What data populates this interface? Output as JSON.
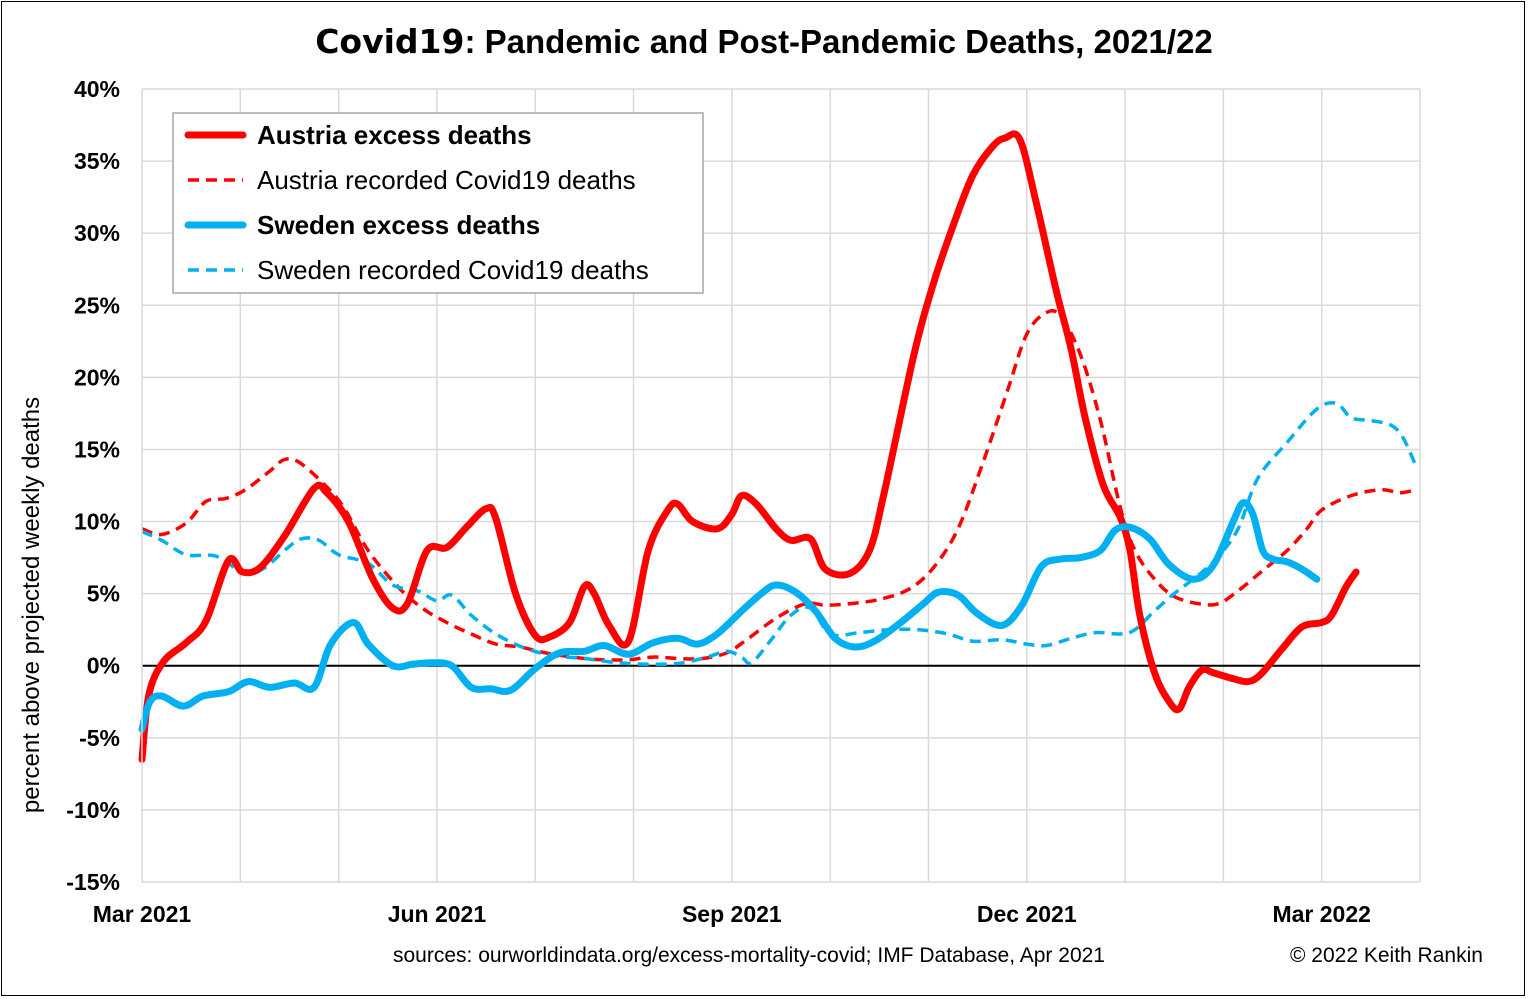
{
  "title": {
    "part1": "Covid19",
    "part2": ": Pandemic and Post-Pandemic Deaths, 2021/22"
  },
  "footer": {
    "sources": "sources: ourworldindata.org/excess-mortality-covid; IMF Database, Apr 2021",
    "copyright": "© 2022 Keith Rankin"
  },
  "chart_data": {
    "type": "line",
    "title": "Covid19: Pandemic and Post-Pandemic Deaths, 2021/22",
    "xlabel": "",
    "ylabel": "percent above projected weekly deaths",
    "ylim": [
      -15,
      40
    ],
    "ytick_step": 5,
    "yticks": [
      "-15%",
      "-10%",
      "-5%",
      "0%",
      "5%",
      "10%",
      "15%",
      "20%",
      "25%",
      "30%",
      "35%",
      "40%"
    ],
    "xlim": [
      0,
      13
    ],
    "x_unit": "months since Mar 2021",
    "xtick_labels": [
      {
        "x": 0,
        "label": "Mar 2021"
      },
      {
        "x": 3,
        "label": "Jun 2021"
      },
      {
        "x": 6,
        "label": "Sep 2021"
      },
      {
        "x": 9,
        "label": "Dec 2021"
      },
      {
        "x": 12,
        "label": "Mar 2022"
      }
    ],
    "grid": true,
    "legend_position": "top-left",
    "series": [
      {
        "name": "Austria excess deaths",
        "color": "#ff0000",
        "style": "solid",
        "bold_label": true,
        "points": [
          [
            0.0,
            -6.5
          ],
          [
            0.07,
            -2.0
          ],
          [
            0.22,
            0.3
          ],
          [
            0.45,
            1.6
          ],
          [
            0.65,
            3.1
          ],
          [
            0.88,
            7.3
          ],
          [
            1.02,
            6.5
          ],
          [
            1.2,
            6.8
          ],
          [
            1.45,
            9.0
          ],
          [
            1.75,
            12.3
          ],
          [
            1.88,
            12.0
          ],
          [
            2.1,
            10.0
          ],
          [
            2.35,
            6.0
          ],
          [
            2.55,
            4.0
          ],
          [
            2.7,
            4.3
          ],
          [
            2.9,
            8.0
          ],
          [
            3.1,
            8.2
          ],
          [
            3.3,
            9.6
          ],
          [
            3.5,
            10.9
          ],
          [
            3.6,
            10.2
          ],
          [
            3.8,
            5.0
          ],
          [
            4.0,
            2.1
          ],
          [
            4.15,
            2.0
          ],
          [
            4.35,
            3.0
          ],
          [
            4.5,
            5.5
          ],
          [
            4.6,
            5.0
          ],
          [
            4.75,
            2.8
          ],
          [
            4.95,
            1.7
          ],
          [
            5.15,
            8.0
          ],
          [
            5.35,
            10.8
          ],
          [
            5.45,
            11.2
          ],
          [
            5.6,
            10.0
          ],
          [
            5.85,
            9.5
          ],
          [
            6.0,
            10.5
          ],
          [
            6.1,
            11.8
          ],
          [
            6.25,
            11.2
          ],
          [
            6.45,
            9.5
          ],
          [
            6.6,
            8.7
          ],
          [
            6.8,
            8.8
          ],
          [
            6.95,
            6.7
          ],
          [
            7.2,
            6.4
          ],
          [
            7.4,
            8.0
          ],
          [
            7.55,
            12.0
          ],
          [
            7.85,
            21.5
          ],
          [
            8.05,
            26.5
          ],
          [
            8.25,
            30.5
          ],
          [
            8.45,
            34.0
          ],
          [
            8.65,
            36.0
          ],
          [
            8.78,
            36.6
          ],
          [
            8.93,
            36.5
          ],
          [
            9.1,
            32.0
          ],
          [
            9.3,
            26.0
          ],
          [
            9.45,
            22.0
          ],
          [
            9.6,
            17.0
          ],
          [
            9.78,
            12.5
          ],
          [
            9.95,
            10.3
          ],
          [
            10.05,
            8.0
          ],
          [
            10.15,
            3.5
          ],
          [
            10.3,
            -0.5
          ],
          [
            10.45,
            -2.5
          ],
          [
            10.55,
            -3.0
          ],
          [
            10.65,
            -1.5
          ],
          [
            10.78,
            -0.3
          ],
          [
            10.9,
            -0.5
          ],
          [
            11.1,
            -0.9
          ],
          [
            11.25,
            -1.1
          ],
          [
            11.38,
            -0.6
          ],
          [
            11.6,
            1.2
          ],
          [
            11.8,
            2.7
          ],
          [
            12.0,
            3.0
          ],
          [
            12.1,
            3.5
          ],
          [
            12.25,
            5.5
          ],
          [
            12.35,
            6.5
          ]
        ]
      },
      {
        "name": "Austria recorded Covid19 deaths",
        "color": "#ff0000",
        "style": "dashed",
        "bold_label": false,
        "points": [
          [
            0.0,
            9.5
          ],
          [
            0.2,
            9.1
          ],
          [
            0.45,
            9.9
          ],
          [
            0.65,
            11.4
          ],
          [
            0.85,
            11.6
          ],
          [
            1.05,
            12.2
          ],
          [
            1.3,
            13.5
          ],
          [
            1.45,
            14.3
          ],
          [
            1.6,
            14.1
          ],
          [
            1.85,
            12.6
          ],
          [
            2.05,
            11.0
          ],
          [
            2.3,
            8.0
          ],
          [
            2.6,
            5.5
          ],
          [
            2.85,
            4.0
          ],
          [
            3.1,
            3.0
          ],
          [
            3.35,
            2.2
          ],
          [
            3.6,
            1.5
          ],
          [
            3.85,
            1.3
          ],
          [
            4.1,
            0.9
          ],
          [
            4.5,
            0.5
          ],
          [
            4.9,
            0.4
          ],
          [
            5.2,
            0.6
          ],
          [
            5.45,
            0.5
          ],
          [
            5.7,
            0.5
          ],
          [
            5.95,
            0.9
          ],
          [
            6.15,
            1.8
          ],
          [
            6.45,
            3.3
          ],
          [
            6.75,
            4.3
          ],
          [
            6.95,
            4.2
          ],
          [
            7.2,
            4.3
          ],
          [
            7.5,
            4.6
          ],
          [
            7.8,
            5.3
          ],
          [
            8.05,
            6.8
          ],
          [
            8.3,
            9.5
          ],
          [
            8.55,
            14.0
          ],
          [
            8.8,
            19.0
          ],
          [
            9.0,
            23.0
          ],
          [
            9.2,
            24.5
          ],
          [
            9.35,
            24.2
          ],
          [
            9.55,
            21.5
          ],
          [
            9.75,
            17.0
          ],
          [
            9.95,
            11.0
          ],
          [
            10.1,
            8.0
          ],
          [
            10.3,
            6.0
          ],
          [
            10.5,
            4.8
          ],
          [
            10.75,
            4.3
          ],
          [
            10.95,
            4.3
          ],
          [
            11.15,
            5.2
          ],
          [
            11.4,
            6.6
          ],
          [
            11.65,
            8.0
          ],
          [
            11.85,
            9.5
          ],
          [
            12.0,
            10.8
          ],
          [
            12.3,
            11.8
          ],
          [
            12.6,
            12.2
          ],
          [
            12.8,
            12.0
          ],
          [
            12.95,
            12.2
          ]
        ]
      },
      {
        "name": "Sweden excess deaths",
        "color": "#00b0f0",
        "style": "solid",
        "bold_label": true,
        "points": [
          [
            0.0,
            -4.4
          ],
          [
            0.08,
            -2.5
          ],
          [
            0.2,
            -2.1
          ],
          [
            0.42,
            -2.8
          ],
          [
            0.62,
            -2.1
          ],
          [
            0.88,
            -1.8
          ],
          [
            1.08,
            -1.1
          ],
          [
            1.3,
            -1.5
          ],
          [
            1.55,
            -1.2
          ],
          [
            1.75,
            -1.5
          ],
          [
            1.92,
            1.5
          ],
          [
            2.15,
            3.0
          ],
          [
            2.3,
            1.5
          ],
          [
            2.55,
            0.0
          ],
          [
            2.75,
            0.1
          ],
          [
            2.95,
            0.2
          ],
          [
            3.15,
            0.0
          ],
          [
            3.35,
            -1.5
          ],
          [
            3.55,
            -1.6
          ],
          [
            3.75,
            -1.7
          ],
          [
            4.0,
            -0.2
          ],
          [
            4.25,
            0.9
          ],
          [
            4.5,
            1.0
          ],
          [
            4.7,
            1.4
          ],
          [
            4.95,
            0.8
          ],
          [
            5.2,
            1.6
          ],
          [
            5.45,
            1.9
          ],
          [
            5.65,
            1.5
          ],
          [
            5.85,
            2.2
          ],
          [
            6.1,
            3.8
          ],
          [
            6.3,
            5.0
          ],
          [
            6.45,
            5.6
          ],
          [
            6.65,
            5.1
          ],
          [
            6.85,
            3.8
          ],
          [
            7.05,
            1.9
          ],
          [
            7.25,
            1.3
          ],
          [
            7.45,
            1.7
          ],
          [
            7.7,
            2.9
          ],
          [
            7.95,
            4.3
          ],
          [
            8.1,
            5.1
          ],
          [
            8.3,
            4.9
          ],
          [
            8.5,
            3.6
          ],
          [
            8.75,
            2.8
          ],
          [
            8.95,
            4.2
          ],
          [
            9.15,
            6.9
          ],
          [
            9.35,
            7.4
          ],
          [
            9.55,
            7.5
          ],
          [
            9.75,
            8.0
          ],
          [
            9.9,
            9.4
          ],
          [
            10.05,
            9.6
          ],
          [
            10.25,
            8.8
          ],
          [
            10.45,
            7.0
          ],
          [
            10.7,
            6.0
          ],
          [
            10.9,
            7.0
          ],
          [
            11.1,
            10.0
          ],
          [
            11.2,
            11.3
          ],
          [
            11.3,
            10.5
          ],
          [
            11.4,
            8.0
          ],
          [
            11.5,
            7.4
          ],
          [
            11.65,
            7.2
          ],
          [
            11.8,
            6.7
          ],
          [
            11.95,
            6.0
          ]
        ]
      },
      {
        "name": "Sweden recorded Covid19 deaths",
        "color": "#00b0f0",
        "style": "dashed",
        "bold_label": false,
        "points": [
          [
            0.0,
            9.3
          ],
          [
            0.2,
            8.7
          ],
          [
            0.45,
            7.7
          ],
          [
            0.75,
            7.6
          ],
          [
            1.05,
            6.4
          ],
          [
            1.25,
            6.8
          ],
          [
            1.45,
            8.0
          ],
          [
            1.62,
            8.8
          ],
          [
            1.8,
            8.7
          ],
          [
            2.0,
            7.7
          ],
          [
            2.3,
            7.1
          ],
          [
            2.55,
            5.6
          ],
          [
            2.8,
            5.2
          ],
          [
            3.0,
            4.5
          ],
          [
            3.15,
            4.9
          ],
          [
            3.35,
            3.5
          ],
          [
            3.6,
            2.2
          ],
          [
            3.9,
            1.2
          ],
          [
            4.2,
            0.7
          ],
          [
            4.5,
            0.5
          ],
          [
            4.85,
            0.2
          ],
          [
            5.2,
            0.1
          ],
          [
            5.5,
            0.2
          ],
          [
            5.75,
            0.6
          ],
          [
            5.95,
            1.0
          ],
          [
            6.1,
            0.6
          ],
          [
            6.2,
            0.2
          ],
          [
            6.4,
            1.8
          ],
          [
            6.6,
            3.5
          ],
          [
            6.8,
            4.0
          ],
          [
            7.0,
            2.2
          ],
          [
            7.3,
            2.3
          ],
          [
            7.6,
            2.5
          ],
          [
            7.9,
            2.5
          ],
          [
            8.2,
            2.2
          ],
          [
            8.45,
            1.7
          ],
          [
            8.75,
            1.8
          ],
          [
            9.0,
            1.5
          ],
          [
            9.2,
            1.4
          ],
          [
            9.45,
            1.9
          ],
          [
            9.7,
            2.3
          ],
          [
            9.95,
            2.2
          ],
          [
            10.1,
            2.5
          ],
          [
            10.3,
            3.8
          ],
          [
            10.5,
            5.0
          ],
          [
            10.75,
            6.3
          ],
          [
            10.95,
            7.6
          ],
          [
            11.15,
            9.5
          ],
          [
            11.35,
            13.0
          ],
          [
            11.65,
            15.5
          ],
          [
            11.95,
            17.8
          ],
          [
            12.15,
            18.2
          ],
          [
            12.3,
            17.2
          ],
          [
            12.5,
            17.0
          ],
          [
            12.7,
            16.7
          ],
          [
            12.82,
            15.9
          ],
          [
            12.95,
            14.0
          ]
        ]
      }
    ]
  }
}
